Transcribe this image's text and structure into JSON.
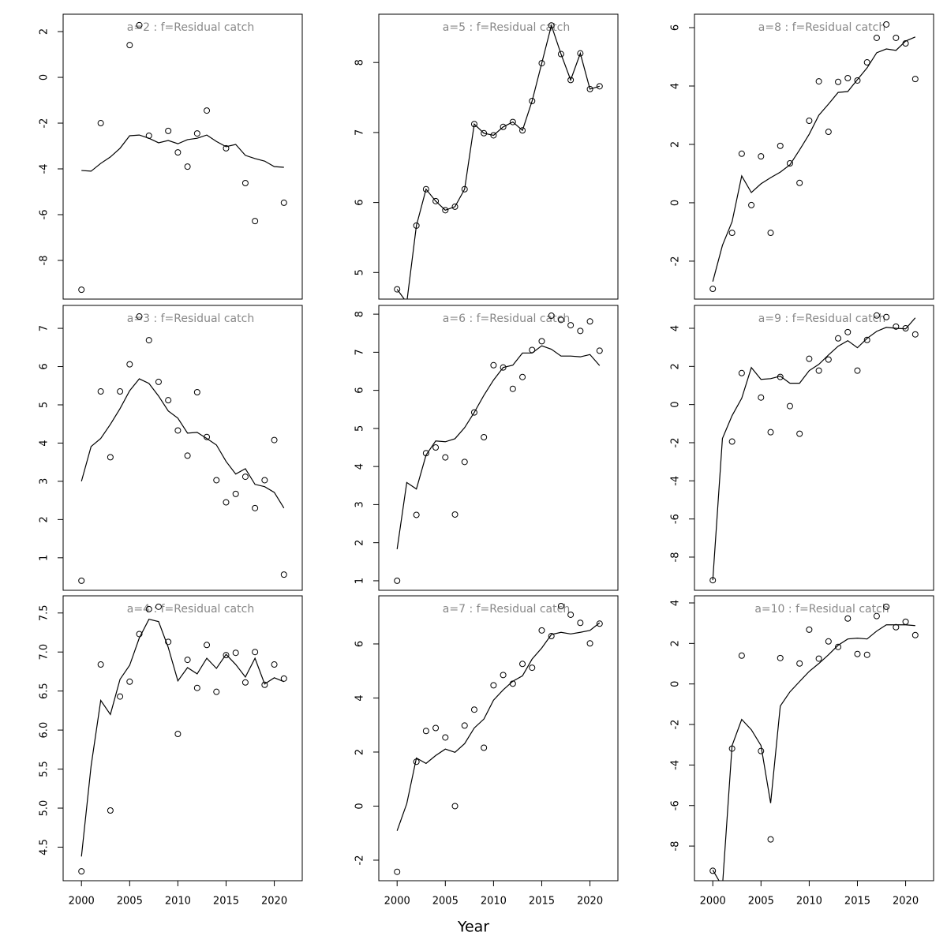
{
  "xlabel": "Year",
  "chart_data": [
    {
      "type": "scatter",
      "title": "a=2  :  f=Residual catch",
      "x": [
        2000,
        2001,
        2002,
        2003,
        2004,
        2005,
        2006,
        2007,
        2008,
        2009,
        2010,
        2011,
        2012,
        2013,
        2014,
        2015,
        2016,
        2017,
        2018,
        2019,
        2020,
        2021
      ],
      "xlim": [
        1998.1,
        2022.9
      ],
      "ylim": [
        -9.69,
        2.76
      ],
      "yticks": [
        -8,
        -6,
        -4,
        -2,
        0,
        2
      ],
      "series": [
        {
          "style": "points",
          "color": "#000000",
          "values": [
            -9.28,
            null,
            -2.0,
            null,
            null,
            1.41,
            2.28,
            -2.55,
            null,
            -2.34,
            -3.28,
            -3.9,
            -2.45,
            -1.45,
            null,
            -3.1,
            null,
            -4.62,
            -6.28,
            null,
            null,
            -5.48
          ]
        },
        {
          "style": "line",
          "color": "#000000",
          "values": [
            -4.07,
            -4.1,
            -3.76,
            -3.48,
            -3.1,
            -2.55,
            -2.52,
            -2.66,
            -2.86,
            -2.76,
            -2.9,
            -2.72,
            -2.66,
            -2.52,
            -2.8,
            -3.03,
            -2.93,
            -3.41,
            -3.55,
            -3.66,
            -3.9,
            -3.93
          ]
        }
      ]
    },
    {
      "type": "scatter",
      "title": "a=3  :  f=Residual catch",
      "x": [
        2000,
        2001,
        2002,
        2003,
        2004,
        2005,
        2006,
        2007,
        2008,
        2009,
        2010,
        2011,
        2012,
        2013,
        2014,
        2015,
        2016,
        2017,
        2018,
        2019,
        2020,
        2021
      ],
      "xlim": [
        1998.1,
        2022.9
      ],
      "ylim": [
        0.15,
        7.6
      ],
      "yticks": [
        1,
        2,
        3,
        4,
        5,
        6,
        7
      ],
      "series": [
        {
          "style": "points",
          "color": "#000000",
          "values": [
            0.4,
            null,
            5.35,
            3.63,
            5.35,
            6.06,
            7.31,
            6.69,
            5.6,
            5.12,
            4.33,
            3.67,
            5.33,
            4.16,
            3.03,
            2.45,
            2.67,
            3.12,
            2.3,
            3.03,
            4.08,
            0.56
          ]
        },
        {
          "style": "line",
          "color": "#000000",
          "values": [
            3.0,
            3.91,
            4.12,
            4.49,
            4.9,
            5.37,
            5.68,
            5.56,
            5.23,
            4.84,
            4.65,
            4.26,
            4.28,
            4.12,
            3.95,
            3.52,
            3.19,
            3.33,
            2.92,
            2.86,
            2.71,
            2.3
          ]
        }
      ]
    },
    {
      "type": "scatter",
      "title": "a=4  :  f=Residual catch",
      "x": [
        2000,
        2001,
        2002,
        2003,
        2004,
        2005,
        2006,
        2007,
        2008,
        2009,
        2010,
        2011,
        2012,
        2013,
        2014,
        2015,
        2016,
        2017,
        2018,
        2019,
        2020,
        2021
      ],
      "xlim": [
        1998.1,
        2022.9
      ],
      "ylim": [
        4.07,
        7.72
      ],
      "yticks": [
        4.5,
        {
          "value": 5,
          "label": "5.0"
        },
        5.5,
        {
          "value": 6,
          "label": "6.0"
        },
        6.5,
        {
          "value": 7,
          "label": "7.0"
        },
        7.5
      ],
      "xticks": [
        2000,
        2005,
        2010,
        2015,
        2020
      ],
      "series": [
        {
          "style": "points",
          "color": "#000000",
          "values": [
            4.19,
            null,
            6.84,
            4.97,
            6.43,
            6.62,
            7.23,
            7.55,
            7.58,
            7.13,
            5.95,
            6.9,
            6.54,
            7.09,
            6.49,
            6.96,
            6.99,
            6.61,
            7.0,
            6.58,
            6.84,
            6.66
          ]
        },
        {
          "style": "line",
          "color": "#000000",
          "values": [
            4.38,
            5.54,
            6.38,
            6.2,
            6.65,
            6.83,
            7.18,
            7.42,
            7.39,
            7.06,
            6.63,
            6.8,
            6.72,
            6.92,
            6.79,
            6.97,
            6.84,
            6.68,
            6.92,
            6.59,
            6.67,
            6.62
          ]
        }
      ]
    },
    {
      "type": "scatter",
      "title": "a=5  :  f=Residual catch",
      "x": [
        2000,
        2001,
        2002,
        2003,
        2004,
        2005,
        2006,
        2007,
        2008,
        2009,
        2010,
        2011,
        2012,
        2013,
        2014,
        2015,
        2016,
        2017,
        2018,
        2019,
        2020,
        2021
      ],
      "xlim": [
        1998.1,
        2022.9
      ],
      "ylim": [
        4.62,
        8.69
      ],
      "yticks": [
        5,
        6,
        7,
        8
      ],
      "series": [
        {
          "style": "points",
          "color": "#000000",
          "values": [
            4.76,
            null,
            5.67,
            6.19,
            6.02,
            5.89,
            5.94,
            6.19,
            7.12,
            6.99,
            6.96,
            7.08,
            7.15,
            7.03,
            7.45,
            7.99,
            8.53,
            8.12,
            7.75,
            8.13,
            7.62,
            7.66
          ]
        },
        {
          "style": "line",
          "color": "#000000",
          "values": [
            4.76,
            4.57,
            5.67,
            6.19,
            6.02,
            5.89,
            5.94,
            6.19,
            7.12,
            6.99,
            6.96,
            7.08,
            7.15,
            7.03,
            7.45,
            7.99,
            8.53,
            8.12,
            7.75,
            8.13,
            7.62,
            7.66
          ]
        }
      ]
    },
    {
      "type": "scatter",
      "title": "a=6  :  f=Residual catch",
      "x": [
        2000,
        2001,
        2002,
        2003,
        2004,
        2005,
        2006,
        2007,
        2008,
        2009,
        2010,
        2011,
        2012,
        2013,
        2014,
        2015,
        2016,
        2017,
        2018,
        2019,
        2020,
        2021
      ],
      "xlim": [
        1998.1,
        2022.9
      ],
      "ylim": [
        0.75,
        8.23
      ],
      "yticks": [
        1,
        2,
        3,
        4,
        5,
        6,
        7,
        8
      ],
      "series": [
        {
          "style": "points",
          "color": "#000000",
          "values": [
            1.0,
            null,
            2.73,
            4.35,
            4.5,
            4.24,
            2.74,
            4.12,
            5.42,
            4.77,
            6.66,
            6.6,
            6.04,
            6.35,
            7.06,
            7.29,
            7.96,
            7.85,
            7.71,
            7.56,
            7.81,
            7.04
          ]
        },
        {
          "style": "line",
          "color": "#000000",
          "values": [
            1.83,
            3.58,
            3.41,
            4.3,
            4.67,
            4.65,
            4.73,
            5.02,
            5.42,
            5.87,
            6.27,
            6.6,
            6.66,
            6.98,
            6.98,
            7.17,
            7.08,
            6.9,
            6.9,
            6.88,
            6.94,
            6.65
          ]
        }
      ]
    },
    {
      "type": "scatter",
      "title": "a=7  :  f=Residual catch",
      "x": [
        2000,
        2001,
        2002,
        2003,
        2004,
        2005,
        2006,
        2007,
        2008,
        2009,
        2010,
        2011,
        2012,
        2013,
        2014,
        2015,
        2016,
        2017,
        2018,
        2019,
        2020,
        2021
      ],
      "xlim": [
        1998.1,
        2022.9
      ],
      "ylim": [
        -2.76,
        7.78
      ],
      "yticks": [
        -2,
        0,
        2,
        4,
        6
      ],
      "xticks": [
        2000,
        2005,
        2010,
        2015,
        2020
      ],
      "series": [
        {
          "style": "points",
          "color": "#000000",
          "values": [
            -2.43,
            null,
            1.64,
            2.78,
            2.89,
            2.54,
            0.0,
            2.98,
            3.57,
            2.16,
            4.47,
            4.85,
            4.53,
            5.26,
            5.12,
            6.5,
            6.29,
            7.4,
            7.08,
            6.78,
            6.02,
            6.75
          ]
        },
        {
          "style": "line",
          "color": "#000000",
          "values": [
            -0.91,
            0.09,
            1.78,
            1.58,
            1.87,
            2.11,
            1.99,
            2.31,
            2.89,
            3.22,
            3.92,
            4.3,
            4.62,
            4.82,
            5.44,
            5.85,
            6.35,
            6.43,
            6.37,
            6.43,
            6.5,
            6.78
          ]
        }
      ]
    },
    {
      "type": "scatter",
      "title": "a=8  :  f=Residual catch",
      "x": [
        2000,
        2001,
        2002,
        2003,
        2004,
        2005,
        2006,
        2007,
        2008,
        2009,
        2010,
        2011,
        2012,
        2013,
        2014,
        2015,
        2016,
        2017,
        2018,
        2019,
        2020,
        2021
      ],
      "xlim": [
        1998.1,
        2022.9
      ],
      "ylim": [
        -3.3,
        6.46
      ],
      "yticks": [
        -2,
        0,
        2,
        4,
        6
      ],
      "series": [
        {
          "style": "points",
          "color": "#000000",
          "values": [
            -2.95,
            null,
            -1.03,
            1.68,
            -0.08,
            1.59,
            -1.03,
            1.95,
            1.35,
            0.68,
            2.81,
            4.16,
            2.43,
            4.14,
            4.27,
            4.19,
            4.81,
            5.65,
            6.11,
            5.65,
            5.46,
            4.24
          ]
        },
        {
          "style": "line",
          "color": "#000000",
          "values": [
            -2.7,
            -1.46,
            -0.65,
            0.92,
            0.35,
            0.65,
            0.86,
            1.05,
            1.3,
            1.81,
            2.35,
            3.0,
            3.38,
            3.78,
            3.81,
            4.22,
            4.62,
            5.14,
            5.27,
            5.22,
            5.54,
            5.68
          ]
        }
      ]
    },
    {
      "type": "scatter",
      "title": "a=9  :  f=Residual catch",
      "x": [
        2000,
        2001,
        2002,
        2003,
        2004,
        2005,
        2006,
        2007,
        2008,
        2009,
        2010,
        2011,
        2012,
        2013,
        2014,
        2015,
        2016,
        2017,
        2018,
        2019,
        2020,
        2021
      ],
      "xlim": [
        1998.1,
        2022.9
      ],
      "ylim": [
        -9.74,
        5.2
      ],
      "yticks": [
        -8,
        -6,
        -4,
        -2,
        0,
        2,
        4
      ],
      "series": [
        {
          "style": "points",
          "color": "#000000",
          "values": [
            -9.21,
            null,
            -1.94,
            1.65,
            null,
            0.37,
            -1.45,
            1.45,
            -0.08,
            -1.53,
            2.4,
            1.78,
            2.36,
            3.47,
            3.8,
            1.78,
            3.39,
            4.67,
            4.59,
            4.09,
            4.0,
            3.68
          ]
        },
        {
          "style": "line",
          "color": "#000000",
          "values": [
            -9.21,
            -1.78,
            -0.58,
            0.33,
            1.94,
            1.32,
            1.36,
            1.49,
            1.12,
            1.12,
            1.78,
            2.11,
            2.6,
            3.06,
            3.35,
            2.98,
            3.47,
            3.84,
            4.05,
            4.0,
            3.97,
            4.55
          ]
        }
      ]
    },
    {
      "type": "scatter",
      "title": "a=10  :  f=Residual catch",
      "x": [
        2000,
        2001,
        2002,
        2003,
        2004,
        2005,
        2006,
        2007,
        2008,
        2009,
        2010,
        2011,
        2012,
        2013,
        2014,
        2015,
        2016,
        2017,
        2018,
        2019,
        2020,
        2021
      ],
      "xlim": [
        1998.1,
        2022.9
      ],
      "ylim": [
        -9.71,
        4.35
      ],
      "yticks": [
        -8,
        -6,
        -4,
        -2,
        0,
        2,
        4
      ],
      "xticks": [
        2000,
        2005,
        2010,
        2015,
        2020
      ],
      "series": [
        {
          "style": "points",
          "color": "#000000",
          "values": [
            -9.22,
            null,
            -3.19,
            1.4,
            null,
            -3.31,
            -7.67,
            1.28,
            null,
            1.01,
            2.68,
            1.25,
            2.1,
            1.83,
            3.23,
            1.48,
            1.44,
            3.35,
            3.81,
            2.8,
            3.07,
            2.41
          ]
        },
        {
          "style": "line",
          "color": "#000000",
          "values": [
            -9.18,
            -10.0,
            -3.04,
            -1.75,
            -2.26,
            -3.04,
            -5.88,
            -1.09,
            -0.39,
            0.12,
            0.62,
            1.01,
            1.44,
            1.91,
            2.22,
            2.26,
            2.22,
            2.61,
            2.92,
            2.92,
            2.92,
            2.88
          ]
        }
      ]
    }
  ]
}
